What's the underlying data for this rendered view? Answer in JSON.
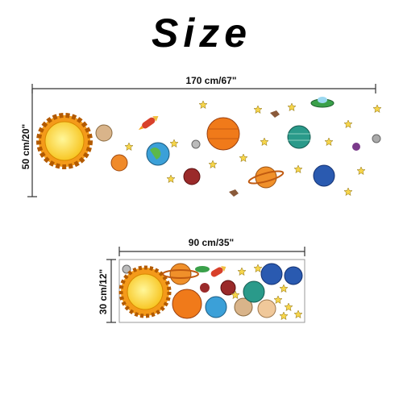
{
  "title": "Size",
  "large": {
    "width_label": "170 cm/67\"",
    "height_label": "50 cm/20\""
  },
  "small": {
    "width_label": "90 cm/35\"",
    "height_label": "30 cm/12\""
  }
}
